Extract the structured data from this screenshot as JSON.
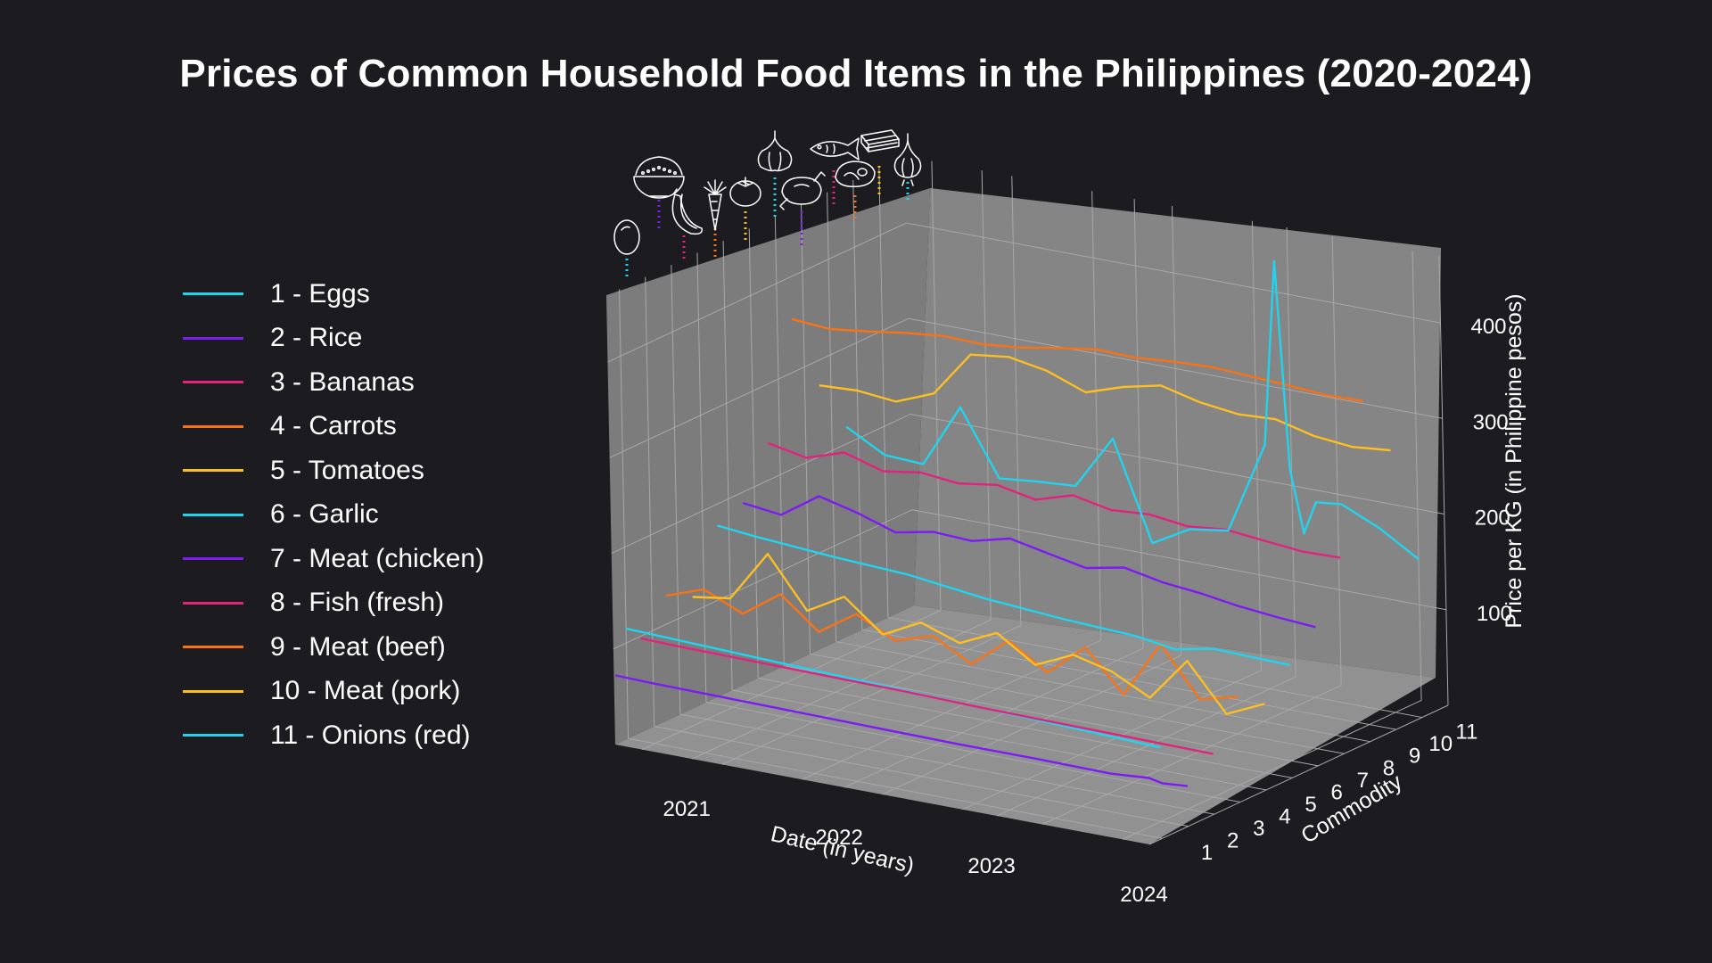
{
  "chart_data": {
    "type": "line",
    "title": "Prices of Common Household Food Items in the Philippines (2020-2024)",
    "xlabel": "Date (in years)",
    "ylabel": "Commodity",
    "zlabel": "Price per KG (in Philippine pesos)",
    "x_ticks": [
      "2021",
      "2022",
      "2023",
      "2024"
    ],
    "y_ticks": [
      "1",
      "2",
      "3",
      "4",
      "5",
      "6",
      "7",
      "8",
      "9",
      "10",
      "11"
    ],
    "z_ticks": [
      "100",
      "200",
      "300",
      "400"
    ],
    "x_range": [
      "2020-07-01",
      "2024-01-01"
    ],
    "z_range": [
      0,
      470
    ],
    "legend_position": "left",
    "grid": true,
    "series": [
      {
        "name": "1 - Eggs",
        "commodity": 1,
        "color": "#22d3ee",
        "x": [
          "2020-07-01",
          "2024-01-01"
        ],
        "values": [
          115,
          95
        ]
      },
      {
        "name": "2 - Rice",
        "commodity": 2,
        "color": "#7c1cf2",
        "x": [
          "2020-04-01",
          "2020-07-01",
          "2021-01-01",
          "2021-07-01",
          "2022-01-01",
          "2022-07-01",
          "2023-01-01",
          "2023-07-01",
          "2023-10-01",
          "2023-11-01",
          "2024-01-01"
        ],
        "values": [
          46,
          45,
          44,
          43,
          42,
          41,
          41,
          40,
          43,
          40,
          42
        ]
      },
      {
        "name": "3 - Bananas",
        "commodity": 3,
        "color": "#e0247c",
        "x": [
          "2020-04-01",
          "2020-07-01",
          "2021-01-01",
          "2021-07-01",
          "2022-01-01",
          "2022-07-01",
          "2023-01-01",
          "2023-07-01",
          "2024-01-01"
        ],
        "values": [
          72,
          71,
          70,
          69,
          68,
          66,
          65,
          64,
          63
        ]
      },
      {
        "name": "4 - Carrots",
        "commodity": 4,
        "color": "#f97316",
        "x": [
          "2020-04-01",
          "2020-07-01",
          "2020-10-01",
          "2021-01-01",
          "2021-04-01",
          "2021-07-01",
          "2021-10-01",
          "2022-01-01",
          "2022-04-01",
          "2022-07-01",
          "2022-10-01",
          "2023-01-01",
          "2023-04-01",
          "2023-07-01",
          "2023-10-01",
          "2024-01-01"
        ],
        "values": [
          104,
          118,
          100,
          128,
          96,
          122,
          102,
          114,
          92,
          124,
          98,
          132,
          90,
          150,
          100,
          110
        ]
      },
      {
        "name": "5 - Tomatoes",
        "commodity": 5,
        "color": "#fbbf24",
        "x": [
          "2020-04-01",
          "2020-07-01",
          "2020-10-01",
          "2021-01-01",
          "2021-04-01",
          "2021-07-01",
          "2021-10-01",
          "2022-01-01",
          "2022-04-01",
          "2022-07-01",
          "2022-10-01",
          "2023-01-01",
          "2023-04-01",
          "2023-07-01",
          "2023-10-01",
          "2024-01-01"
        ],
        "values": [
          90,
          96,
          150,
          98,
          120,
          88,
          108,
          94,
          112,
          86,
          104,
          94,
          74,
          120,
          72,
          90
        ]
      },
      {
        "name": "6 - Garlic",
        "commodity": 6,
        "color": "#22d3ee",
        "x": [
          "2020-04-01",
          "2020-07-01",
          "2021-01-01",
          "2021-07-01",
          "2022-01-01",
          "2022-07-01",
          "2023-01-01",
          "2023-04-01",
          "2023-07-01",
          "2024-01-01"
        ],
        "values": [
          152,
          148,
          142,
          138,
          128,
          122,
          118,
          112,
          120,
          118
        ]
      },
      {
        "name": "7 - Meat (chicken)",
        "commodity": 7,
        "color": "#7c1cf2",
        "x": [
          "2020-04-01",
          "2020-07-01",
          "2020-10-01",
          "2021-01-01",
          "2021-04-01",
          "2021-07-01",
          "2021-10-01",
          "2022-01-01",
          "2022-04-01",
          "2022-07-01",
          "2022-10-01",
          "2023-01-01",
          "2023-04-01",
          "2023-07-01",
          "2023-10-01",
          "2024-01-01"
        ],
        "values": [
          163,
          158,
          185,
          175,
          162,
          170,
          168,
          178,
          170,
          162,
          170,
          162,
          158,
          152,
          148,
          145
        ]
      },
      {
        "name": "8 - Fish (fresh)",
        "commodity": 8,
        "color": "#e0247c",
        "x": [
          "2020-04-01",
          "2020-07-01",
          "2020-10-01",
          "2021-01-01",
          "2021-04-01",
          "2021-07-01",
          "2021-10-01",
          "2022-01-01",
          "2022-04-01",
          "2022-07-01",
          "2022-10-01",
          "2023-01-01",
          "2023-04-01",
          "2023-07-01",
          "2023-10-01",
          "2024-01-01"
        ],
        "values": [
          213,
          205,
          218,
          206,
          212,
          208,
          214,
          206,
          218,
          210,
          213,
          208,
          212,
          208,
          204,
          205
        ]
      },
      {
        "name": "9 - Meat (beef)",
        "commodity": 9,
        "color": "#f97316",
        "x": [
          "2020-04-01",
          "2020-07-01",
          "2020-10-01",
          "2021-01-01",
          "2021-04-01",
          "2021-07-01",
          "2021-10-01",
          "2022-01-01",
          "2022-04-01",
          "2022-07-01",
          "2022-10-01",
          "2023-01-01",
          "2023-04-01",
          "2023-07-01",
          "2023-10-01",
          "2024-01-01"
        ],
        "values": [
          330,
          327,
          332,
          338,
          342,
          341,
          345,
          352,
          358,
          357,
          360,
          362,
          360,
          358,
          355,
          356
        ]
      },
      {
        "name": "10 - Meat (pork)",
        "commodity": 10,
        "color": "#fbbf24",
        "x": [
          "2020-04-01",
          "2020-07-01",
          "2020-10-01",
          "2021-01-01",
          "2021-04-01",
          "2021-07-01",
          "2021-10-01",
          "2022-01-01",
          "2022-04-01",
          "2022-07-01",
          "2022-10-01",
          "2023-01-01",
          "2023-04-01",
          "2023-07-01",
          "2023-10-01",
          "2024-01-01"
        ],
        "values": [
          248,
          250,
          246,
          262,
          310,
          315,
          308,
          293,
          306,
          315,
          305,
          300,
          302,
          292,
          288,
          292
        ]
      },
      {
        "name": "11 - Onions (red)",
        "commodity": 11,
        "color": "#22d3ee",
        "x": [
          "2020-04-01",
          "2020-07-01",
          "2020-10-01",
          "2021-01-01",
          "2021-04-01",
          "2021-07-01",
          "2021-10-01",
          "2022-01-01",
          "2022-04-01",
          "2022-07-01",
          "2022-10-01",
          "2023-01-01",
          "2023-02-01",
          "2023-03-01",
          "2023-04-01",
          "2023-05-01",
          "2023-07-01",
          "2023-10-01",
          "2024-01-01"
        ],
        "values": [
          192,
          170,
          168,
          235,
          168,
          172,
          175,
          232,
          130,
          152,
          158,
          255,
          450,
          235,
          170,
          205,
          208,
          190,
          165
        ]
      }
    ],
    "commodity_icons": [
      "egg-icon",
      "rice-bowl-icon",
      "banana-icon",
      "carrot-icon",
      "tomato-icon",
      "garlic-icon",
      "chicken-icon",
      "fish-icon",
      "beef-icon",
      "pork-icon",
      "onion-icon"
    ]
  }
}
